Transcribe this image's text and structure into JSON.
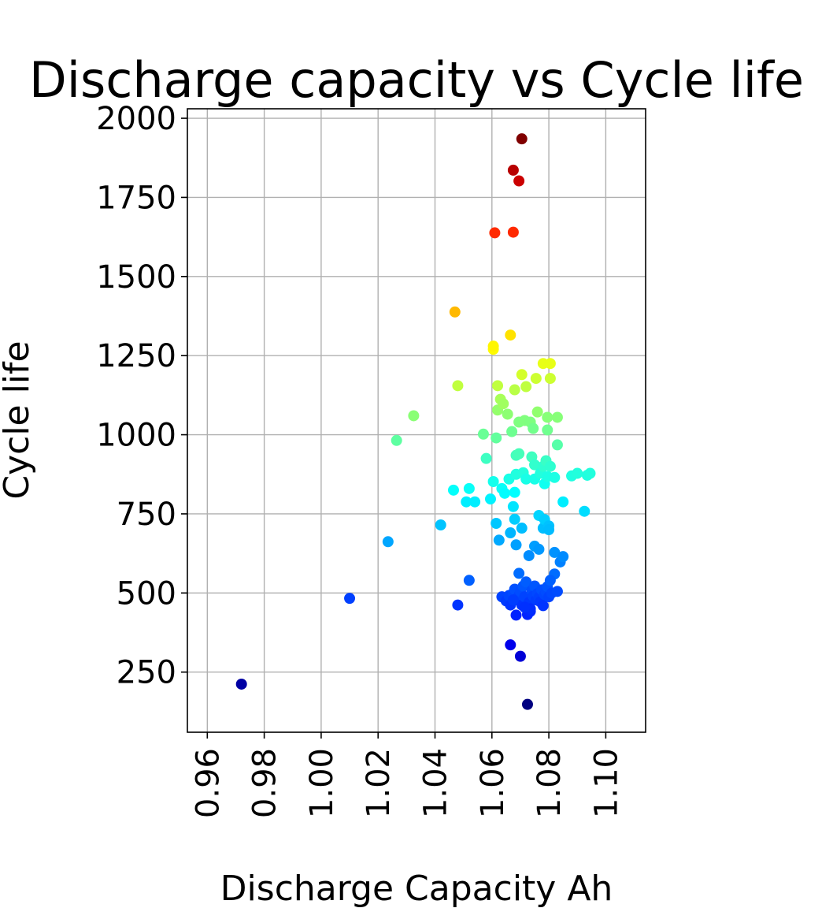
{
  "chart_data": {
    "type": "scatter",
    "title": "Discharge capacity vs Cycle life",
    "xlabel": "Discharge Capacity Ah",
    "ylabel": "Cycle life",
    "xlim": [
      0.953,
      1.114
    ],
    "ylim": [
      60,
      2030
    ],
    "xticks": [
      0.96,
      0.98,
      1.0,
      1.02,
      1.04,
      1.06,
      1.08,
      1.1
    ],
    "xtick_labels": [
      "0.96",
      "0.98",
      "1.00",
      "1.02",
      "1.04",
      "1.06",
      "1.08",
      "1.10"
    ],
    "yticks": [
      250,
      500,
      750,
      1000,
      1250,
      1500,
      1750,
      2000
    ],
    "ytick_labels": [
      "250",
      "500",
      "750",
      "1000",
      "1250",
      "1500",
      "1750",
      "2000"
    ],
    "grid": true,
    "colormap": "jet",
    "color_by": "y",
    "color_range": [
      148,
      1935
    ],
    "points": [
      [
        0.972,
        212
      ],
      [
        1.0725,
        148
      ],
      [
        1.07,
        300
      ],
      [
        1.0665,
        336
      ],
      [
        1.01,
        483
      ],
      [
        1.048,
        462
      ],
      [
        1.052,
        540
      ],
      [
        1.0235,
        662
      ],
      [
        1.042,
        715
      ],
      [
        1.0265,
        982
      ],
      [
        1.0325,
        1060
      ],
      [
        1.048,
        1155
      ],
      [
        1.047,
        1388
      ],
      [
        1.0605,
        1270
      ],
      [
        1.0605,
        1280
      ],
      [
        1.0665,
        1315
      ],
      [
        1.061,
        1638
      ],
      [
        1.0675,
        1640
      ],
      [
        1.0675,
        1836
      ],
      [
        1.0695,
        1802
      ],
      [
        1.0705,
        1935
      ],
      [
        1.0465,
        825
      ],
      [
        1.051,
        788
      ],
      [
        1.052,
        830
      ],
      [
        1.054,
        788
      ],
      [
        1.0595,
        797
      ],
      [
        1.0605,
        852
      ],
      [
        1.057,
        1002
      ],
      [
        1.058,
        925
      ],
      [
        1.0615,
        990
      ],
      [
        1.062,
        1078
      ],
      [
        1.062,
        1155
      ],
      [
        1.063,
        1112
      ],
      [
        1.064,
        1098
      ],
      [
        1.0655,
        1065
      ],
      [
        1.067,
        1010
      ],
      [
        1.068,
        1142
      ],
      [
        1.0695,
        1040
      ],
      [
        1.0705,
        1190
      ],
      [
        1.0715,
        1045
      ],
      [
        1.072,
        1152
      ],
      [
        1.0735,
        1040
      ],
      [
        1.0745,
        1020
      ],
      [
        1.0755,
        1178
      ],
      [
        1.076,
        1072
      ],
      [
        1.078,
        1225
      ],
      [
        1.0795,
        1055
      ],
      [
        1.0795,
        1015
      ],
      [
        1.0805,
        1178
      ],
      [
        1.0805,
        1225
      ],
      [
        1.083,
        1055
      ],
      [
        1.083,
        968
      ],
      [
        1.0635,
        830
      ],
      [
        1.0645,
        815
      ],
      [
        1.066,
        860
      ],
      [
        1.068,
        818
      ],
      [
        1.0685,
        875
      ],
      [
        1.0685,
        935
      ],
      [
        1.0695,
        940
      ],
      [
        1.071,
        880
      ],
      [
        1.072,
        860
      ],
      [
        1.074,
        930
      ],
      [
        1.075,
        905
      ],
      [
        1.075,
        860
      ],
      [
        1.077,
        878
      ],
      [
        1.078,
        900
      ],
      [
        1.0785,
        845
      ],
      [
        1.079,
        918
      ],
      [
        1.0795,
        868
      ],
      [
        1.0805,
        900
      ],
      [
        1.082,
        865
      ],
      [
        1.088,
        870
      ],
      [
        1.09,
        878
      ],
      [
        1.0935,
        872
      ],
      [
        1.0945,
        878
      ],
      [
        1.0925,
        758
      ],
      [
        1.085,
        788
      ],
      [
        1.0615,
        720
      ],
      [
        1.0625,
        667
      ],
      [
        1.0665,
        690
      ],
      [
        1.0675,
        773
      ],
      [
        1.068,
        733
      ],
      [
        1.0685,
        652
      ],
      [
        1.0695,
        562
      ],
      [
        1.0705,
        705
      ],
      [
        1.073,
        618
      ],
      [
        1.075,
        648
      ],
      [
        1.0765,
        745
      ],
      [
        1.0765,
        638
      ],
      [
        1.078,
        705
      ],
      [
        1.0785,
        732
      ],
      [
        1.08,
        712
      ],
      [
        1.08,
        700
      ],
      [
        1.082,
        628
      ],
      [
        1.082,
        560
      ],
      [
        1.084,
        598
      ],
      [
        1.085,
        615
      ],
      [
        1.0635,
        488
      ],
      [
        1.065,
        475
      ],
      [
        1.066,
        492
      ],
      [
        1.0665,
        462
      ],
      [
        1.0675,
        500
      ],
      [
        1.068,
        512
      ],
      [
        1.0685,
        430
      ],
      [
        1.069,
        478
      ],
      [
        1.0695,
        492
      ],
      [
        1.07,
        505
      ],
      [
        1.0705,
        462
      ],
      [
        1.071,
        522
      ],
      [
        1.0715,
        488
      ],
      [
        1.072,
        535
      ],
      [
        1.0725,
        432
      ],
      [
        1.073,
        470
      ],
      [
        1.0735,
        442
      ],
      [
        1.074,
        508
      ],
      [
        1.0745,
        490
      ],
      [
        1.075,
        522
      ],
      [
        1.0755,
        478
      ],
      [
        1.076,
        498
      ],
      [
        1.0765,
        486
      ],
      [
        1.077,
        472
      ],
      [
        1.0775,
        510
      ],
      [
        1.078,
        460
      ],
      [
        1.0785,
        495
      ],
      [
        1.079,
        505
      ],
      [
        1.0795,
        520
      ],
      [
        1.08,
        488
      ],
      [
        1.0805,
        540
      ],
      [
        1.081,
        500
      ],
      [
        1.083,
        505
      ],
      [
        1.0735,
        450
      ],
      [
        1.0715,
        455
      ],
      [
        1.0675,
        478
      ]
    ]
  }
}
